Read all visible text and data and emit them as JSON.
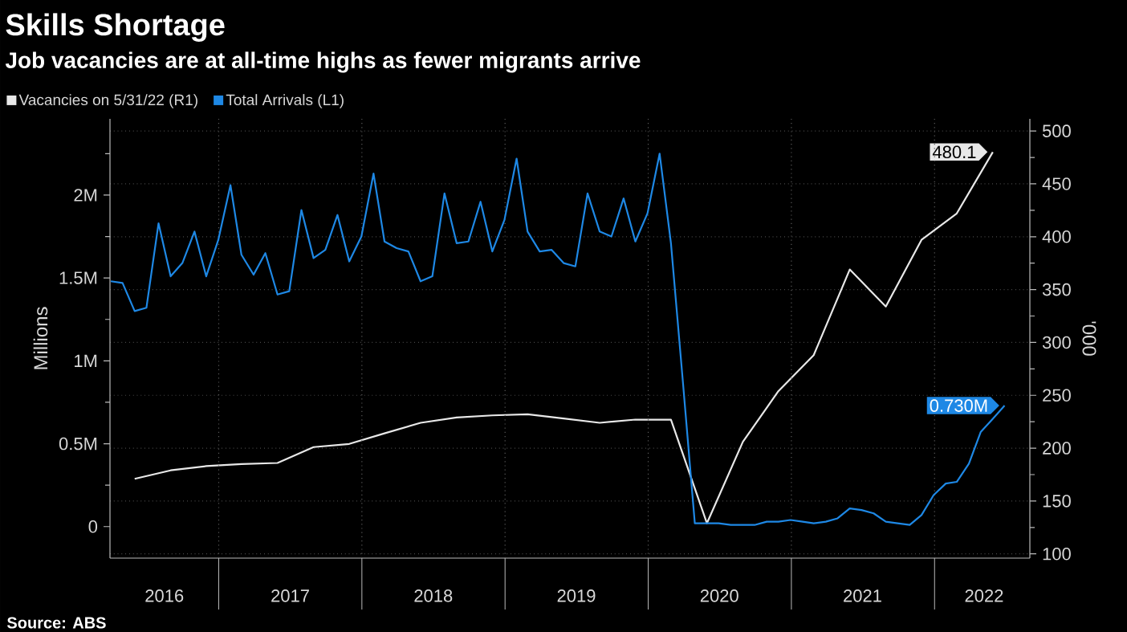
{
  "chart_data": {
    "type": "line",
    "title": "Skills Shortage",
    "subtitle": "Job vacancies are at all-time highs as fewer migrants arrive",
    "ylabel": "Millions",
    "y2label": "'000",
    "annotations": [
      "Source: ABS"
    ],
    "legend": "top left",
    "grid": true,
    "xlim": [
      "2016-03-29",
      "2022-09-01"
    ],
    "xticks": [
      {
        "value": "2016-08-14",
        "label": "2016"
      },
      {
        "value": "2017-01-01",
        "label": null
      },
      {
        "value": "2017-07-02",
        "label": "2017"
      },
      {
        "value": "2018-01-01",
        "label": null
      },
      {
        "value": "2018-07-02",
        "label": "2018"
      },
      {
        "value": "2019-01-01",
        "label": null
      },
      {
        "value": "2019-07-02",
        "label": "2019"
      },
      {
        "value": "2020-01-01",
        "label": null
      },
      {
        "value": "2020-07-02",
        "label": "2020"
      },
      {
        "value": "2021-01-01",
        "label": null
      },
      {
        "value": "2021-07-02",
        "label": "2021"
      },
      {
        "value": "2022-01-01",
        "label": null
      },
      {
        "value": "2022-05-08",
        "label": "2022"
      }
    ],
    "ylim": [
      -0.19,
      2.46
    ],
    "yticks": [
      0,
      {
        "value": 0.25,
        "label": null
      },
      {
        "value": 0.5,
        "label": "0.5M"
      },
      {
        "value": 0.75,
        "label": null
      },
      {
        "value": 1,
        "label": "1M"
      },
      {
        "value": 1.25,
        "label": null
      },
      {
        "value": 1.5,
        "label": "1.5M"
      },
      {
        "value": 1.75,
        "label": null
      },
      {
        "value": 2,
        "label": "2M"
      },
      {
        "value": 2.25,
        "label": null
      }
    ],
    "y2lim": [
      96,
      511.5
    ],
    "y2ticks": [
      100,
      {
        "value": 125,
        "label": null
      },
      150,
      {
        "value": 175,
        "label": null
      },
      200,
      {
        "value": 225,
        "label": null
      },
      250,
      {
        "value": 275,
        "label": null
      },
      300,
      {
        "value": 325,
        "label": null
      },
      350,
      {
        "value": 375,
        "label": null
      },
      400,
      {
        "value": 425,
        "label": null
      },
      450,
      {
        "value": 475,
        "label": null
      },
      500
    ],
    "series": [
      {
        "name": "Vacancies on 5/31/22 (R1)",
        "color": "#e8e8e8",
        "axis": "y2",
        "x": [
          "2016-05-31",
          "2016-08-31",
          "2016-11-30",
          "2017-02-28",
          "2017-05-31",
          "2017-08-31",
          "2017-11-30",
          "2018-02-28",
          "2018-05-31",
          "2018-08-31",
          "2018-11-30",
          "2019-02-28",
          "2019-05-31",
          "2019-08-31",
          "2019-11-30",
          "2020-02-29",
          "2020-05-31",
          "2020-08-31",
          "2020-11-30",
          "2021-02-28",
          "2021-05-31",
          "2021-08-31",
          "2021-11-30",
          "2022-02-28",
          "2022-05-31"
        ],
        "values": [
          171,
          179,
          183,
          185,
          186,
          201,
          204,
          214,
          224,
          229,
          231,
          232,
          228,
          224,
          227,
          227,
          129,
          206,
          254,
          288,
          369,
          334,
          397,
          422,
          480.1
        ],
        "value_labels": [
          null,
          null,
          null,
          null,
          null,
          null,
          null,
          null,
          null,
          null,
          null,
          null,
          null,
          null,
          null,
          null,
          null,
          null,
          null,
          null,
          null,
          null,
          null,
          null,
          "480.1"
        ]
      },
      {
        "name": "Total Arrivals (L1)",
        "color": "#1e88e5",
        "axis": "y",
        "x": [
          "2016-03-31",
          "2016-04-30",
          "2016-05-31",
          "2016-06-30",
          "2016-07-31",
          "2016-08-31",
          "2016-09-30",
          "2016-10-31",
          "2016-11-30",
          "2016-12-31",
          "2017-01-31",
          "2017-02-28",
          "2017-03-31",
          "2017-04-30",
          "2017-05-31",
          "2017-06-30",
          "2017-07-31",
          "2017-08-31",
          "2017-09-30",
          "2017-10-31",
          "2017-11-30",
          "2017-12-31",
          "2018-01-31",
          "2018-02-28",
          "2018-03-31",
          "2018-04-30",
          "2018-05-31",
          "2018-06-30",
          "2018-07-31",
          "2018-08-31",
          "2018-09-30",
          "2018-10-31",
          "2018-11-30",
          "2018-12-31",
          "2019-01-31",
          "2019-02-28",
          "2019-03-31",
          "2019-04-30",
          "2019-05-31",
          "2019-06-30",
          "2019-07-31",
          "2019-08-31",
          "2019-09-30",
          "2019-10-31",
          "2019-11-30",
          "2019-12-31",
          "2020-01-31",
          "2020-02-29",
          "2020-03-31",
          "2020-04-30",
          "2020-05-31",
          "2020-06-30",
          "2020-07-31",
          "2020-08-31",
          "2020-09-30",
          "2020-10-31",
          "2020-11-30",
          "2020-12-31",
          "2021-01-31",
          "2021-02-28",
          "2021-03-31",
          "2021-04-30",
          "2021-05-31",
          "2021-06-30",
          "2021-07-31",
          "2021-08-31",
          "2021-09-30",
          "2021-10-31",
          "2021-11-30",
          "2021-12-31",
          "2022-01-31",
          "2022-02-28",
          "2022-03-31",
          "2022-04-30",
          "2022-05-31",
          "2022-06-30"
        ],
        "values": [
          1.48,
          1.47,
          1.3,
          1.32,
          1.83,
          1.51,
          1.59,
          1.78,
          1.51,
          1.73,
          2.06,
          1.64,
          1.52,
          1.65,
          1.4,
          1.42,
          1.91,
          1.62,
          1.67,
          1.88,
          1.6,
          1.75,
          2.13,
          1.72,
          1.68,
          1.66,
          1.48,
          1.51,
          2.01,
          1.71,
          1.72,
          1.96,
          1.66,
          1.85,
          2.22,
          1.78,
          1.66,
          1.67,
          1.59,
          1.57,
          2.01,
          1.78,
          1.75,
          1.98,
          1.72,
          1.89,
          2.25,
          1.71,
          0.86,
          0.02,
          0.02,
          0.02,
          0.01,
          0.01,
          0.01,
          0.03,
          0.03,
          0.04,
          0.03,
          0.02,
          0.03,
          0.05,
          0.11,
          0.1,
          0.08,
          0.03,
          0.02,
          0.01,
          0.07,
          0.19,
          0.26,
          0.27,
          0.38,
          0.57,
          0.65,
          0.73
        ],
        "value_labels": [
          null,
          null,
          null,
          null,
          null,
          null,
          null,
          null,
          null,
          null,
          null,
          null,
          null,
          null,
          null,
          null,
          null,
          null,
          null,
          null,
          null,
          null,
          null,
          null,
          null,
          null,
          null,
          null,
          null,
          null,
          null,
          null,
          null,
          null,
          null,
          null,
          null,
          null,
          null,
          null,
          null,
          null,
          null,
          null,
          null,
          null,
          null,
          null,
          null,
          null,
          null,
          null,
          null,
          null,
          null,
          null,
          null,
          null,
          null,
          null,
          null,
          null,
          null,
          null,
          null,
          null,
          null,
          null,
          null,
          null,
          null,
          null,
          null,
          null,
          null,
          "0.730M"
        ]
      }
    ]
  }
}
